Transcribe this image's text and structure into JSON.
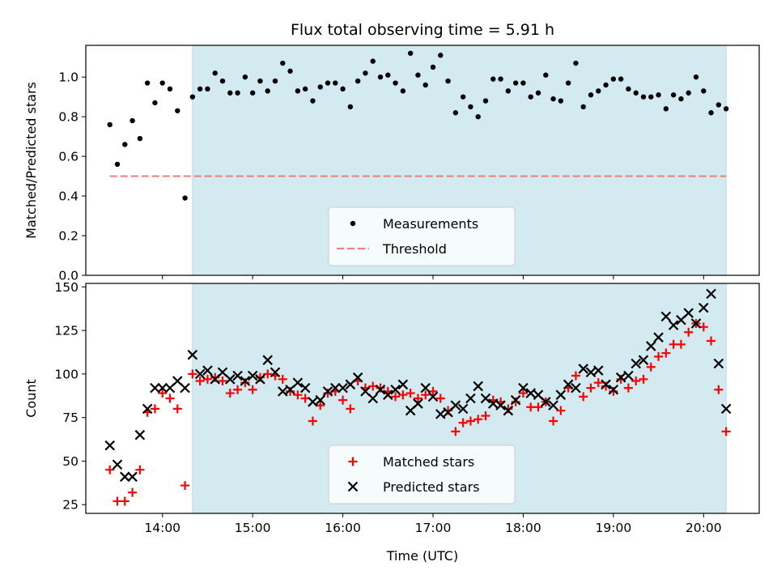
{
  "title": "Flux total observing time = 5.91 h",
  "xlabel": "Time (UTC)",
  "xticks": [
    {
      "t": 14,
      "label": "14:00"
    },
    {
      "t": 15,
      "label": "15:00"
    },
    {
      "t": 16,
      "label": "16:00"
    },
    {
      "t": 17,
      "label": "17:00"
    },
    {
      "t": 18,
      "label": "18:00"
    },
    {
      "t": 19,
      "label": "19:00"
    },
    {
      "t": 20,
      "label": "20:00"
    }
  ],
  "chart_data": [
    {
      "type": "scatter",
      "title": "Flux total observing time = 5.91 h",
      "ylabel": "Matched/Predicted stars",
      "xlim": [
        "13:09",
        "20:37"
      ],
      "ylim": [
        0,
        1.16
      ],
      "yticks": [
        "0.0",
        "0.2",
        "0.4",
        "0.6",
        "0.8",
        "1.0"
      ],
      "grid": false,
      "legend_position": "lower center",
      "shaded_interval": {
        "start": "14:20",
        "end": "20:15",
        "color": "#d3eaf0"
      },
      "series": [
        {
          "name": "Measurements",
          "marker": "dot",
          "color": "#000000",
          "points": [
            [
              "13:25",
              0.76
            ],
            [
              "13:30",
              0.56
            ],
            [
              "13:35",
              0.66
            ],
            [
              "13:40",
              0.78
            ],
            [
              "13:45",
              0.69
            ],
            [
              "13:50",
              0.97
            ],
            [
              "13:55",
              0.87
            ],
            [
              "14:00",
              0.97
            ],
            [
              "14:05",
              0.94
            ],
            [
              "14:10",
              0.83
            ],
            [
              "14:15",
              0.39
            ],
            [
              "14:20",
              0.9
            ],
            [
              "14:25",
              0.94
            ],
            [
              "14:30",
              0.94
            ],
            [
              "14:35",
              1.02
            ],
            [
              "14:40",
              0.98
            ],
            [
              "14:45",
              0.92
            ],
            [
              "14:50",
              0.92
            ],
            [
              "14:55",
              1.0
            ],
            [
              "15:00",
              0.92
            ],
            [
              "15:05",
              0.98
            ],
            [
              "15:10",
              0.93
            ],
            [
              "15:15",
              0.98
            ],
            [
              "15:20",
              1.07
            ],
            [
              "15:25",
              1.03
            ],
            [
              "15:30",
              0.93
            ],
            [
              "15:35",
              0.94
            ],
            [
              "15:40",
              0.88
            ],
            [
              "15:45",
              0.95
            ],
            [
              "15:50",
              0.97
            ],
            [
              "15:55",
              0.97
            ],
            [
              "16:00",
              0.94
            ],
            [
              "16:05",
              0.85
            ],
            [
              "16:10",
              0.98
            ],
            [
              "16:15",
              1.02
            ],
            [
              "16:20",
              1.08
            ],
            [
              "16:25",
              1.0
            ],
            [
              "16:30",
              1.01
            ],
            [
              "16:35",
              0.97
            ],
            [
              "16:40",
              0.93
            ],
            [
              "16:45",
              1.12
            ],
            [
              "16:50",
              1.01
            ],
            [
              "16:55",
              0.96
            ],
            [
              "17:00",
              1.05
            ],
            [
              "17:05",
              1.11
            ],
            [
              "17:10",
              0.98
            ],
            [
              "17:15",
              0.82
            ],
            [
              "17:20",
              0.9
            ],
            [
              "17:25",
              0.85
            ],
            [
              "17:30",
              0.8
            ],
            [
              "17:35",
              0.88
            ],
            [
              "17:40",
              0.99
            ],
            [
              "17:45",
              0.99
            ],
            [
              "17:50",
              0.93
            ],
            [
              "17:55",
              0.97
            ],
            [
              "18:00",
              0.97
            ],
            [
              "18:05",
              0.9
            ],
            [
              "18:10",
              0.92
            ],
            [
              "18:15",
              1.01
            ],
            [
              "18:20",
              0.89
            ],
            [
              "18:25",
              0.88
            ],
            [
              "18:30",
              0.97
            ],
            [
              "18:35",
              1.07
            ],
            [
              "18:40",
              0.85
            ],
            [
              "18:45",
              0.91
            ],
            [
              "18:50",
              0.93
            ],
            [
              "18:55",
              0.96
            ],
            [
              "19:00",
              0.99
            ],
            [
              "19:05",
              0.99
            ],
            [
              "19:10",
              0.94
            ],
            [
              "19:15",
              0.92
            ],
            [
              "19:20",
              0.9
            ],
            [
              "19:25",
              0.9
            ],
            [
              "19:30",
              0.91
            ],
            [
              "19:35",
              0.84
            ],
            [
              "19:40",
              0.91
            ],
            [
              "19:45",
              0.89
            ],
            [
              "19:50",
              0.92
            ],
            [
              "19:55",
              1.0
            ],
            [
              "20:00",
              0.93
            ],
            [
              "20:05",
              0.82
            ],
            [
              "20:10",
              0.86
            ],
            [
              "20:15",
              0.84
            ]
          ]
        },
        {
          "name": "Threshold",
          "marker": "dashed-line",
          "color": "#f08080",
          "points": [
            [
              "13:25",
              0.5
            ],
            [
              "20:15",
              0.5
            ]
          ]
        }
      ]
    },
    {
      "type": "scatter",
      "ylabel": "Count",
      "xlim": [
        "13:09",
        "20:37"
      ],
      "ylim": [
        20,
        152
      ],
      "yticks": [
        "25",
        "50",
        "75",
        "100",
        "125",
        "150"
      ],
      "grid": false,
      "legend_position": "lower center",
      "shaded_interval": {
        "start": "14:20",
        "end": "20:15",
        "color": "#d3eaf0"
      },
      "series": [
        {
          "name": "Matched stars",
          "marker": "plus",
          "color": "#ff0000",
          "points": [
            [
              "13:25",
              45
            ],
            [
              "13:30",
              27
            ],
            [
              "13:35",
              27
            ],
            [
              "13:40",
              32
            ],
            [
              "13:45",
              45
            ],
            [
              "13:50",
              78
            ],
            [
              "13:55",
              80
            ],
            [
              "14:00",
              89
            ],
            [
              "14:05",
              86
            ],
            [
              "14:10",
              80
            ],
            [
              "14:15",
              36
            ],
            [
              "14:20",
              100
            ],
            [
              "14:25",
              96
            ],
            [
              "14:30",
              97
            ],
            [
              "14:35",
              98
            ],
            [
              "14:40",
              96
            ],
            [
              "14:45",
              89
            ],
            [
              "14:50",
              91
            ],
            [
              "14:55",
              95
            ],
            [
              "15:00",
              91
            ],
            [
              "15:05",
              98
            ],
            [
              "15:10",
              100
            ],
            [
              "15:15",
              99
            ],
            [
              "15:20",
              97
            ],
            [
              "15:25",
              90
            ],
            [
              "15:30",
              88
            ],
            [
              "15:35",
              86
            ],
            [
              "15:40",
              73
            ],
            [
              "15:45",
              82
            ],
            [
              "15:50",
              89
            ],
            [
              "15:55",
              90
            ],
            [
              "16:00",
              85
            ],
            [
              "16:05",
              80
            ],
            [
              "16:10",
              96
            ],
            [
              "16:15",
              92
            ],
            [
              "16:20",
              93
            ],
            [
              "16:25",
              92
            ],
            [
              "16:30",
              90
            ],
            [
              "16:35",
              87
            ],
            [
              "16:40",
              88
            ],
            [
              "16:45",
              89
            ],
            [
              "16:50",
              86
            ],
            [
              "16:55",
              88
            ],
            [
              "17:00",
              90
            ],
            [
              "17:05",
              86
            ],
            [
              "17:10",
              79
            ],
            [
              "17:15",
              67
            ],
            [
              "17:20",
              72
            ],
            [
              "17:25",
              73
            ],
            [
              "17:30",
              74
            ],
            [
              "17:35",
              76
            ],
            [
              "17:40",
              85
            ],
            [
              "17:45",
              84
            ],
            [
              "17:50",
              80
            ],
            [
              "17:55",
              84
            ],
            [
              "18:00",
              89
            ],
            [
              "18:05",
              81
            ],
            [
              "18:10",
              81
            ],
            [
              "18:15",
              84
            ],
            [
              "18:20",
              73
            ],
            [
              "18:25",
              79
            ],
            [
              "18:30",
              92
            ],
            [
              "18:35",
              99
            ],
            [
              "18:40",
              87
            ],
            [
              "18:45",
              92
            ],
            [
              "18:50",
              95
            ],
            [
              "18:55",
              93
            ],
            [
              "19:00",
              90
            ],
            [
              "19:05",
              97
            ],
            [
              "19:10",
              92
            ],
            [
              "19:15",
              96
            ],
            [
              "19:20",
              97
            ],
            [
              "19:25",
              104
            ],
            [
              "19:30",
              110
            ],
            [
              "19:35",
              112
            ],
            [
              "19:40",
              117
            ],
            [
              "19:45",
              117
            ],
            [
              "19:50",
              124
            ],
            [
              "19:55",
              129
            ],
            [
              "20:00",
              127
            ],
            [
              "20:05",
              119
            ],
            [
              "20:10",
              91
            ],
            [
              "20:15",
              67
            ]
          ]
        },
        {
          "name": "Predicted stars",
          "marker": "x",
          "color": "#000000",
          "points": [
            [
              "13:25",
              59
            ],
            [
              "13:30",
              48
            ],
            [
              "13:35",
              41
            ],
            [
              "13:40",
              41
            ],
            [
              "13:45",
              65
            ],
            [
              "13:50",
              80
            ],
            [
              "13:55",
              92
            ],
            [
              "14:00",
              92
            ],
            [
              "14:05",
              92
            ],
            [
              "14:10",
              96
            ],
            [
              "14:15",
              92
            ],
            [
              "14:20",
              111
            ],
            [
              "14:25",
              100
            ],
            [
              "14:30",
              102
            ],
            [
              "14:35",
              97
            ],
            [
              "14:40",
              101
            ],
            [
              "14:45",
              97
            ],
            [
              "14:50",
              99
            ],
            [
              "14:55",
              96
            ],
            [
              "15:00",
              99
            ],
            [
              "15:05",
              97
            ],
            [
              "15:10",
              108
            ],
            [
              "15:15",
              101
            ],
            [
              "15:20",
              90
            ],
            [
              "15:25",
              91
            ],
            [
              "15:30",
              95
            ],
            [
              "15:35",
              92
            ],
            [
              "15:40",
              84
            ],
            [
              "15:45",
              85
            ],
            [
              "15:50",
              90
            ],
            [
              "15:55",
              92
            ],
            [
              "16:00",
              92
            ],
            [
              "16:05",
              94
            ],
            [
              "16:10",
              98
            ],
            [
              "16:15",
              90
            ],
            [
              "16:20",
              86
            ],
            [
              "16:25",
              91
            ],
            [
              "16:30",
              88
            ],
            [
              "16:35",
              91
            ],
            [
              "16:40",
              94
            ],
            [
              "16:45",
              79
            ],
            [
              "16:50",
              83
            ],
            [
              "16:55",
              92
            ],
            [
              "17:00",
              87
            ],
            [
              "17:05",
              77
            ],
            [
              "17:10",
              78
            ],
            [
              "17:15",
              82
            ],
            [
              "17:20",
              80
            ],
            [
              "17:25",
              86
            ],
            [
              "17:30",
              93
            ],
            [
              "17:35",
              86
            ],
            [
              "17:40",
              83
            ],
            [
              "17:45",
              82
            ],
            [
              "17:50",
              79
            ],
            [
              "17:55",
              85
            ],
            [
              "18:00",
              92
            ],
            [
              "18:05",
              89
            ],
            [
              "18:10",
              88
            ],
            [
              "18:15",
              84
            ],
            [
              "18:20",
              82
            ],
            [
              "18:25",
              88
            ],
            [
              "18:30",
              94
            ],
            [
              "18:35",
              92
            ],
            [
              "18:40",
              103
            ],
            [
              "18:45",
              101
            ],
            [
              "18:50",
              102
            ],
            [
              "18:55",
              94
            ],
            [
              "19:00",
              91
            ],
            [
              "19:05",
              98
            ],
            [
              "19:10",
              99
            ],
            [
              "19:15",
              106
            ],
            [
              "19:20",
              108
            ],
            [
              "19:25",
              116
            ],
            [
              "19:30",
              121
            ],
            [
              "19:35",
              133
            ],
            [
              "19:40",
              128
            ],
            [
              "19:45",
              131
            ],
            [
              "19:50",
              135
            ],
            [
              "19:55",
              129
            ],
            [
              "20:00",
              138
            ],
            [
              "20:05",
              146
            ],
            [
              "20:10",
              106
            ],
            [
              "20:15",
              80
            ]
          ]
        }
      ]
    }
  ]
}
